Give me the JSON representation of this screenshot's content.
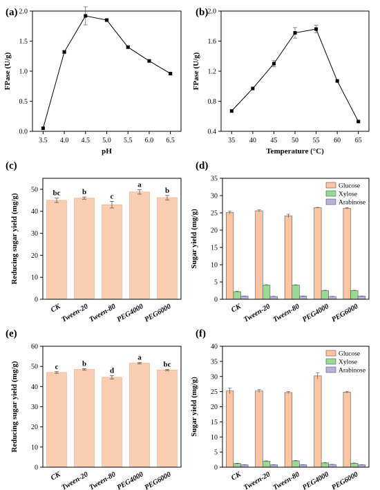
{
  "colors": {
    "bar": "#f9cdb1",
    "glucose": "#fbc5a1",
    "xylose": "#9ad995",
    "arabinose": "#b9b0dc",
    "line": "#000000"
  },
  "chart_data": [
    {
      "id": "a",
      "panel_label": "(a)",
      "type": "line",
      "xlabel": "pH",
      "ylabel": "FPase (U/g)",
      "xlim": [
        3.25,
        6.75
      ],
      "ylim": [
        0,
        2.0
      ],
      "xticks": [
        3.5,
        4.0,
        4.5,
        5.0,
        5.5,
        6.0,
        6.5
      ],
      "xtick_labels": [
        "3.5",
        "4.0",
        "4.5",
        "5.0",
        "5.5",
        "6.0",
        "6.5"
      ],
      "yticks": [
        0,
        0.5,
        1.0,
        1.5,
        2.0
      ],
      "ytick_labels": [
        "0.0",
        "0.5",
        "1.0",
        "1.5",
        "2.0"
      ],
      "x": [
        3.5,
        4.0,
        4.5,
        5.0,
        5.5,
        6.0,
        6.5
      ],
      "y": [
        0.05,
        1.32,
        1.92,
        1.85,
        1.4,
        1.17,
        0.96
      ],
      "err": [
        0.01,
        0.02,
        0.15,
        0.02,
        0.02,
        0.02,
        0.02
      ]
    },
    {
      "id": "b",
      "panel_label": "(b)",
      "type": "line",
      "xlabel": "Temperature (°C)",
      "ylabel": "FPase (U/g)",
      "xlim": [
        32.5,
        67.5
      ],
      "ylim": [
        0.4,
        2.0
      ],
      "xticks": [
        35,
        40,
        45,
        50,
        55,
        60,
        65
      ],
      "xtick_labels": [
        "35",
        "40",
        "45",
        "50",
        "55",
        "60",
        "65"
      ],
      "yticks": [
        0.4,
        0.8,
        1.2,
        1.6,
        2.0
      ],
      "ytick_labels": [
        "0.4",
        "0.8",
        "1.2",
        "1.6",
        "2.0"
      ],
      "x": [
        35,
        40,
        45,
        50,
        55,
        60,
        65
      ],
      "y": [
        0.67,
        0.97,
        1.3,
        1.71,
        1.76,
        1.07,
        0.53
      ],
      "err": [
        0.01,
        0.01,
        0.04,
        0.07,
        0.05,
        0.01,
        0.01
      ]
    },
    {
      "id": "c",
      "panel_label": "(c)",
      "type": "bar",
      "xlabel": "",
      "ylabel": "Reducing sugar yield (mg/g)",
      "ylim": [
        0,
        55
      ],
      "yticks": [
        0,
        10,
        20,
        30,
        40,
        50
      ],
      "ytick_labels": [
        "0",
        "10",
        "20",
        "30",
        "40",
        "50"
      ],
      "categories": [
        "CK",
        "Tween-20",
        "Tween-80",
        "PEG4000",
        "PEG6000"
      ],
      "values": [
        45.0,
        46.0,
        43.0,
        48.8,
        46.2
      ],
      "err": [
        1.0,
        0.5,
        1.5,
        1.0,
        1.0
      ],
      "letters": [
        "bc",
        "b",
        "c",
        "a",
        "b"
      ]
    },
    {
      "id": "d",
      "panel_label": "(d)",
      "type": "bar",
      "xlabel": "",
      "ylabel": "Sugar yield (mg/g)",
      "ylim": [
        0,
        35
      ],
      "yticks": [
        0,
        5,
        10,
        15,
        20,
        25,
        30,
        35
      ],
      "ytick_labels": [
        "0",
        "5",
        "10",
        "15",
        "20",
        "25",
        "30",
        "35"
      ],
      "categories": [
        "CK",
        "Tween-20",
        "Tween-80",
        "PEG4000",
        "PEG6000"
      ],
      "legend_position": "top-right",
      "series": [
        {
          "name": "Glucose",
          "color_key": "glucose",
          "values": [
            25.1,
            25.6,
            24.1,
            26.5,
            26.3
          ],
          "err": [
            0.4,
            0.3,
            0.5,
            0.1,
            0.2
          ]
        },
        {
          "name": "Xylose",
          "color_key": "xylose",
          "values": [
            2.2,
            4.1,
            4.1,
            2.5,
            2.5
          ],
          "err": [
            0.1,
            0.1,
            0.1,
            0.1,
            0.1
          ]
        },
        {
          "name": "Arabinose",
          "color_key": "arabinose",
          "values": [
            0.9,
            0.8,
            0.9,
            0.8,
            0.9
          ],
          "err": [
            0.05,
            0.05,
            0.05,
            0.05,
            0.05
          ]
        }
      ]
    },
    {
      "id": "e",
      "panel_label": "(e)",
      "type": "bar",
      "xlabel": "",
      "ylabel": "Reducing sugar yield (mg/g)",
      "ylim": [
        0,
        60
      ],
      "yticks": [
        0,
        10,
        20,
        30,
        40,
        50,
        60
      ],
      "ytick_labels": [
        "0",
        "10",
        "20",
        "30",
        "40",
        "50",
        "60"
      ],
      "categories": [
        "CK",
        "Tween-20",
        "Tween-80",
        "PEG4000",
        "PEG6000"
      ],
      "values": [
        47.0,
        48.5,
        44.6,
        51.6,
        48.2
      ],
      "err": [
        0.4,
        0.4,
        0.8,
        0.4,
        0.3
      ],
      "letters": [
        "c",
        "b",
        "d",
        "a",
        "bc"
      ]
    },
    {
      "id": "f",
      "panel_label": "(f)",
      "type": "bar",
      "xlabel": "",
      "ylabel": "Sugar yield (mg/g)",
      "ylim": [
        0,
        40
      ],
      "yticks": [
        0,
        5,
        10,
        15,
        20,
        25,
        30,
        35,
        40
      ],
      "ytick_labels": [
        "0",
        "5",
        "10",
        "15",
        "20",
        "25",
        "30",
        "35",
        "40"
      ],
      "categories": [
        "CK",
        "Tween-20",
        "Tween-80",
        "PEG4000",
        "PEG6000"
      ],
      "legend_position": "top-right",
      "series": [
        {
          "name": "Glucose",
          "color_key": "glucose",
          "values": [
            25.2,
            25.2,
            24.7,
            30.2,
            24.8
          ],
          "err": [
            0.9,
            0.5,
            0.3,
            1.0,
            0.3
          ]
        },
        {
          "name": "Xylose",
          "color_key": "xylose",
          "values": [
            1.2,
            2.0,
            2.1,
            1.4,
            1.3
          ],
          "err": [
            0.1,
            0.1,
            0.1,
            0.1,
            0.1
          ]
        },
        {
          "name": "Arabinose",
          "color_key": "arabinose",
          "values": [
            0.8,
            0.8,
            0.8,
            0.9,
            0.8
          ],
          "err": [
            0.05,
            0.05,
            0.05,
            0.05,
            0.05
          ]
        }
      ]
    }
  ]
}
